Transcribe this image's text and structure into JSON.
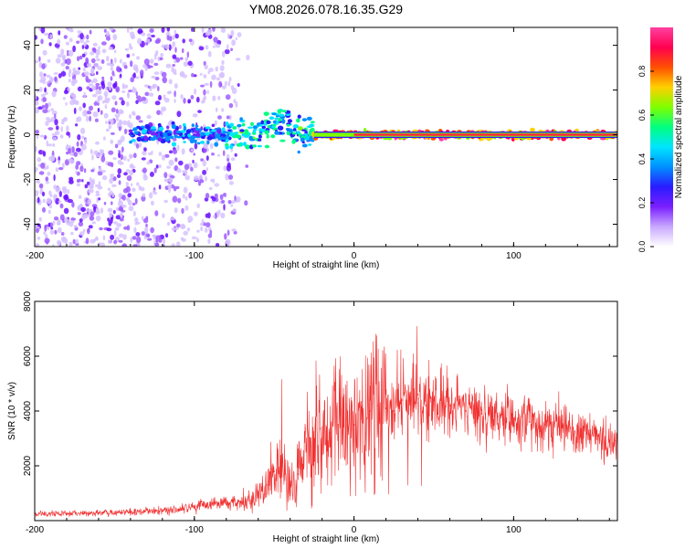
{
  "title": "YM08.2026.078.16.35.G29",
  "chart_data": [
    {
      "type": "heatmap",
      "xlabel": "Height of straight line (km)",
      "ylabel": "Frequency (Hz)",
      "xlim": [
        -200,
        165
      ],
      "ylim": [
        -50,
        48
      ],
      "x_ticks": [
        -200,
        -100,
        0,
        100
      ],
      "y_ticks": [
        -40,
        -20,
        0,
        20,
        40
      ],
      "colorbar": {
        "label": "Normalized spectral amplitude",
        "range": [
          0.0,
          1.0
        ],
        "ticks": [
          "0.0",
          "0.2",
          "0.4",
          "0.6",
          "0.8"
        ],
        "colormap": [
          "#ffffff",
          "#c9a8ff",
          "#7a1fff",
          "#2a1cff",
          "#0090ff",
          "#00e5ff",
          "#00ff7f",
          "#7fff00",
          "#ffd000",
          "#ff5000",
          "#ff0050",
          "#ff40a0"
        ]
      },
      "features": {
        "noise_region_km": [
          -200,
          -72
        ],
        "main_line_frequency_hz": 0,
        "strong_signal_from_km": -25
      }
    },
    {
      "type": "line",
      "xlabel": "Height of straight line (km)",
      "ylabel": "SNR (10 * v/v)",
      "xlim": [
        -200,
        165
      ],
      "ylim": [
        0,
        8000
      ],
      "x_ticks": [
        -200,
        -100,
        0,
        100
      ],
      "y_ticks": [
        2000,
        4000,
        6000,
        8000
      ],
      "line_color": "#f03030",
      "series": [
        {
          "name": "SNR",
          "x": [
            -200,
            -180,
            -160,
            -140,
            -120,
            -100,
            -90,
            -80,
            -70,
            -60,
            -55,
            -50,
            -45,
            -40,
            -35,
            -30,
            -25,
            -20,
            -15,
            -10,
            -5,
            0,
            5,
            10,
            15,
            20,
            25,
            30,
            35,
            40,
            45,
            50,
            55,
            60,
            70,
            80,
            90,
            100,
            110,
            120,
            130,
            140,
            150,
            160,
            165
          ],
          "values": [
            250,
            260,
            280,
            320,
            350,
            500,
            600,
            600,
            650,
            900,
            1300,
            1800,
            2000,
            1300,
            1700,
            2600,
            3000,
            3000,
            3200,
            3500,
            3700,
            3500,
            3600,
            4000,
            4200,
            4100,
            4000,
            4400,
            4500,
            4600,
            4200,
            4400,
            4300,
            4200,
            4000,
            3900,
            3800,
            3700,
            3600,
            3500,
            3400,
            3250,
            3100,
            2900,
            2800
          ]
        }
      ]
    }
  ]
}
